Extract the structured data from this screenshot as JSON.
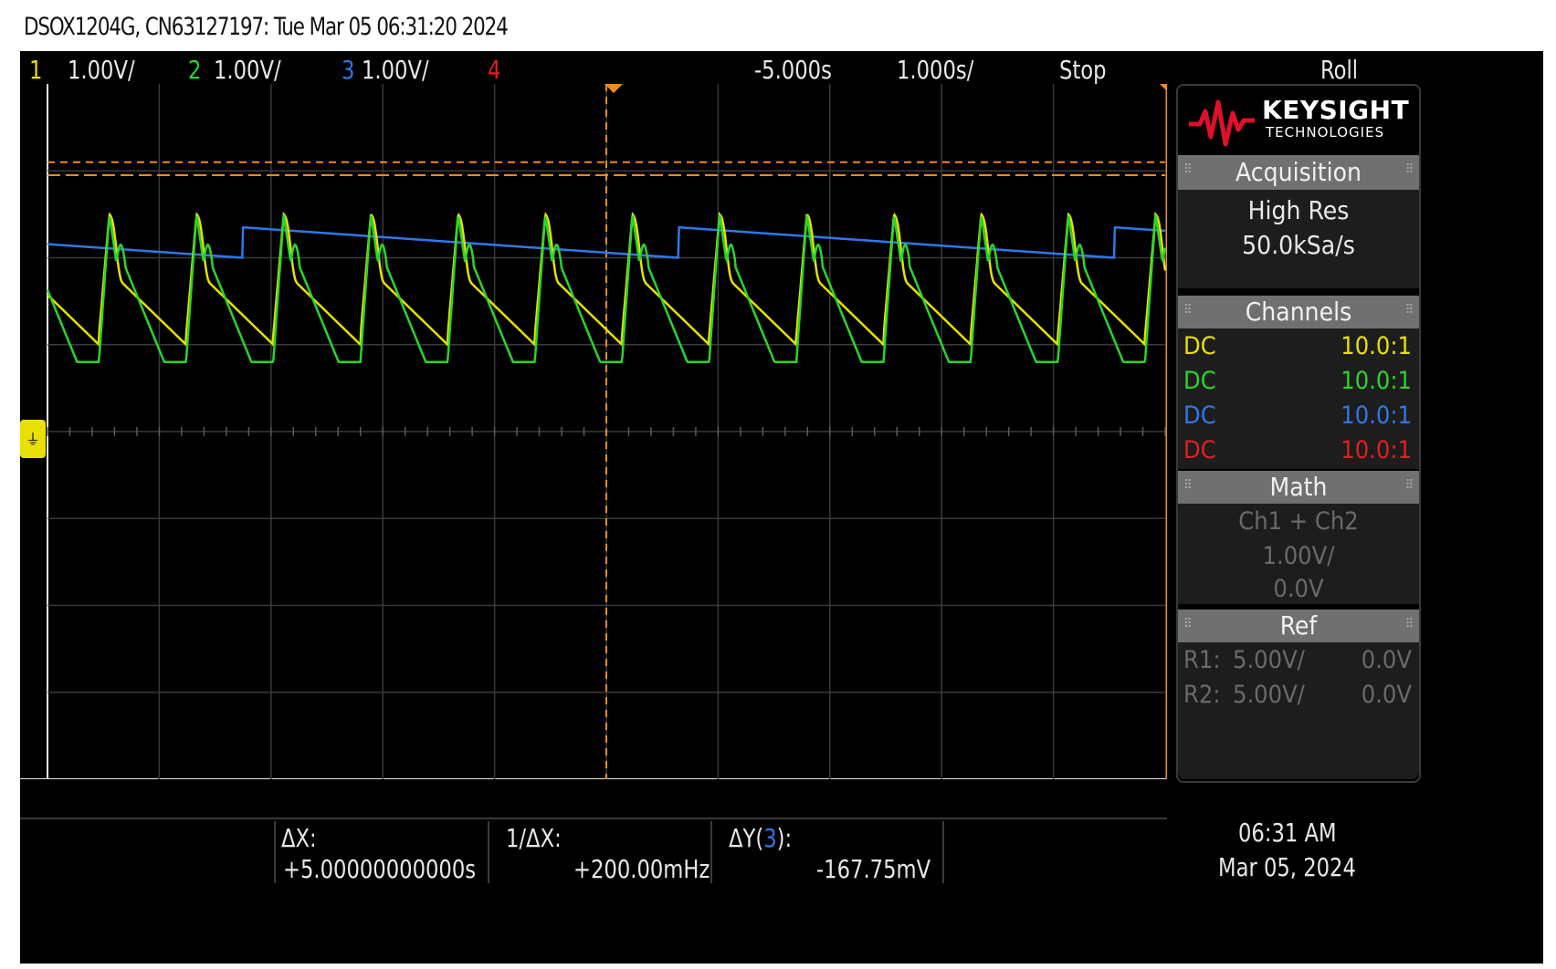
{
  "header": {
    "text": "DSOX1204G, CN63127197: Tue Mar 05 06:31:20 2024"
  },
  "topbar": {
    "ch1_num": "1",
    "ch1_scale": "1.00V/",
    "ch2_num": "2",
    "ch2_scale": "1.00V/",
    "ch3_num": "3",
    "ch3_scale": "1.00V/",
    "ch4_num": "4",
    "delay": "-5.000s",
    "timebase": "1.000s/",
    "run_state": "Stop",
    "mode": "Roll"
  },
  "colors": {
    "ch1": "#e8e000",
    "ch2": "#2bd42b",
    "ch3": "#2f78e8",
    "ch4": "#e02020",
    "cursor": "#f08a20",
    "grid": "#3a3a3a"
  },
  "panel": {
    "logo_title": "KEYSIGHT",
    "logo_subtitle": "TECHNOLOGIES",
    "acquisition": {
      "header": "Acquisition",
      "mode": "High Res",
      "rate": "50.0kSa/s"
    },
    "channels": {
      "header": "Channels",
      "rows": [
        {
          "coupling": "DC",
          "probe": "10.0:1"
        },
        {
          "coupling": "DC",
          "probe": "10.0:1"
        },
        {
          "coupling": "DC",
          "probe": "10.0:1"
        },
        {
          "coupling": "DC",
          "probe": "10.0:1"
        }
      ]
    },
    "math": {
      "header": "Math",
      "function": "Ch1 + Ch2",
      "scale": "1.00V/",
      "offset": "0.0V"
    },
    "ref": {
      "header": "Ref",
      "r1_label": "R1:",
      "r1_scale": "5.00V/",
      "r1_offset": "0.0V",
      "r2_label": "R2:",
      "r2_scale": "5.00V/",
      "r2_offset": "0.0V"
    }
  },
  "measurements": {
    "dx_label": "ΔX:",
    "dx_value": "+5.00000000000s",
    "inv_dx_label": "1/ΔX:",
    "inv_dx_value": "+200.00mHz",
    "dy_label_prefix": "ΔY(",
    "dy_channel": "3",
    "dy_label_suffix": "):",
    "dy_value": "-167.75mV"
  },
  "clock": {
    "time": "06:31 AM",
    "date": "Mar 05, 2024"
  },
  "chart_data": {
    "type": "line",
    "x_divisions": 10,
    "y_divisions": 8,
    "x_range": [
      -10,
      0
    ],
    "y_range_div": [
      -4,
      4
    ],
    "series": [
      {
        "channel": "1",
        "color": "#e8e000",
        "period_s": 0.78,
        "high_div": 2.5,
        "low_div": 1.0,
        "shape": "sawtooth-decay"
      },
      {
        "channel": "2",
        "color": "#2bd42b",
        "period_s": 0.78,
        "high_div": 2.5,
        "low_div": 0.8,
        "shape": "pulse"
      },
      {
        "channel": "3",
        "color": "#2f78e8",
        "period_s": 3.9,
        "high_div": 2.35,
        "low_div": 2.0,
        "shape": "slow-ramp"
      }
    ],
    "cursors": {
      "x_cursor_s": -5.0,
      "y_cursor1_div": 3.1,
      "y_cursor2_div": 2.95
    }
  }
}
